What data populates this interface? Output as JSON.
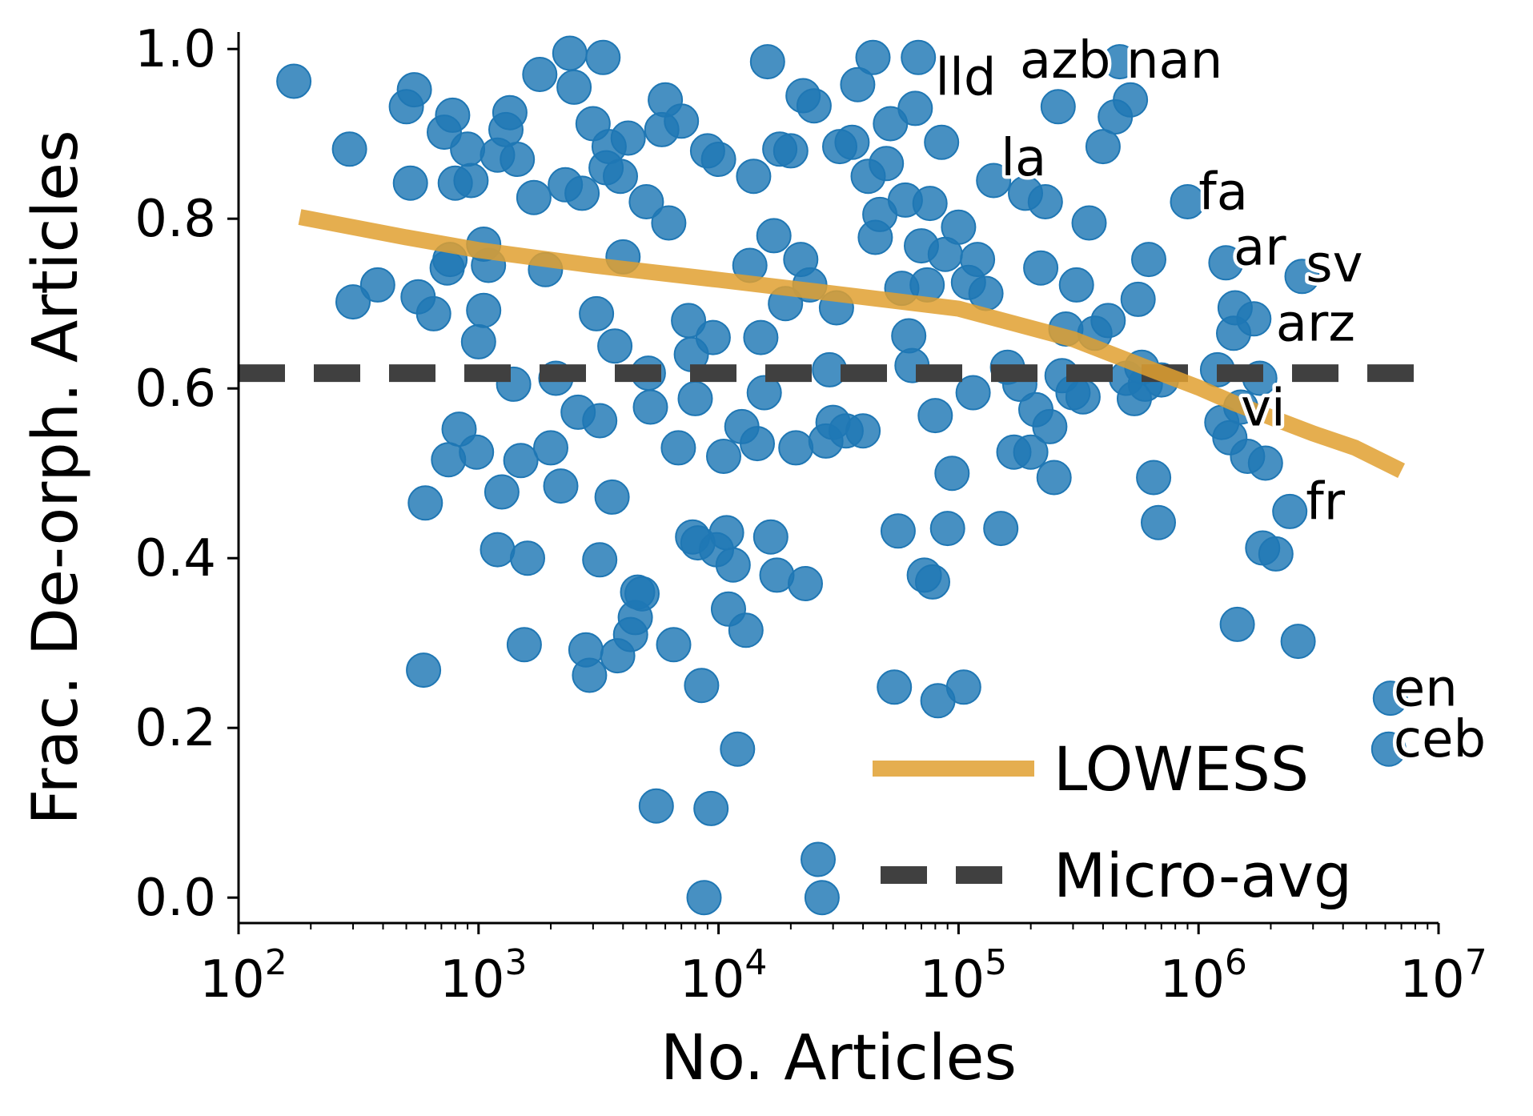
{
  "chart_data": {
    "type": "scatter",
    "xlabel": "No. Articles",
    "ylabel": "Frac. De-orph. Articles",
    "x_scale": "log",
    "xlim": [
      100,
      10000000
    ],
    "ylim": [
      -0.03,
      1.02
    ],
    "x_ticks": [
      {
        "value": 100,
        "base": "10",
        "exp": "2"
      },
      {
        "value": 1000,
        "base": "10",
        "exp": "3"
      },
      {
        "value": 10000,
        "base": "10",
        "exp": "4"
      },
      {
        "value": 100000,
        "base": "10",
        "exp": "5"
      },
      {
        "value": 1000000,
        "base": "10",
        "exp": "6"
      },
      {
        "value": 10000000,
        "base": "10",
        "exp": "7"
      }
    ],
    "y_ticks": [
      {
        "value": 0.0,
        "label": "0.0"
      },
      {
        "value": 0.2,
        "label": "0.2"
      },
      {
        "value": 0.4,
        "label": "0.4"
      },
      {
        "value": 0.6,
        "label": "0.6"
      },
      {
        "value": 0.8,
        "label": "0.8"
      },
      {
        "value": 1.0,
        "label": "1.0"
      }
    ],
    "grid": false,
    "legend_position": "bottom-right",
    "colors": {
      "points": "#1f77b4",
      "lowess": "#e0a030",
      "micro_avg": "#404040"
    },
    "micro_avg": {
      "name": "Micro-avg",
      "y": 0.618
    },
    "lowess": {
      "name": "LOWESS",
      "x": [
        180,
        500,
        1000,
        3000,
        10000,
        30000,
        100000,
        300000,
        600000,
        1000000,
        1400000,
        2000000,
        3000000,
        4500000,
        7000000
      ],
      "y": [
        0.802,
        0.778,
        0.763,
        0.745,
        0.728,
        0.712,
        0.694,
        0.658,
        0.625,
        0.601,
        0.583,
        0.566,
        0.547,
        0.53,
        0.503
      ]
    },
    "annotations": [
      {
        "text": "lld",
        "x": 80000,
        "y": 0.965
      },
      {
        "text": "azb",
        "x": 180000,
        "y": 0.985
      },
      {
        "text": "nan",
        "x": 500000,
        "y": 0.985
      },
      {
        "text": "la",
        "x": 150000,
        "y": 0.87
      },
      {
        "text": "fa",
        "x": 1000000,
        "y": 0.83
      },
      {
        "text": "ar",
        "x": 1400000,
        "y": 0.765
      },
      {
        "text": "sv",
        "x": 2800000,
        "y": 0.745
      },
      {
        "text": "arz",
        "x": 2100000,
        "y": 0.675
      },
      {
        "text": "vi",
        "x": 1500000,
        "y": 0.575
      },
      {
        "text": "fr",
        "x": 2800000,
        "y": 0.465
      },
      {
        "text": "en",
        "x": 6500000,
        "y": 0.245
      },
      {
        "text": "ceb",
        "x": 6500000,
        "y": 0.185
      }
    ],
    "points": [
      [
        170,
        0.962
      ],
      [
        290,
        0.882
      ],
      [
        300,
        0.702
      ],
      [
        380,
        0.722
      ],
      [
        500,
        0.932
      ],
      [
        540,
        0.952
      ],
      [
        520,
        0.842
      ],
      [
        560,
        0.708
      ],
      [
        600,
        0.465
      ],
      [
        590,
        0.268
      ],
      [
        650,
        0.688
      ],
      [
        720,
        0.902
      ],
      [
        740,
        0.742
      ],
      [
        760,
        0.752
      ],
      [
        780,
        0.922
      ],
      [
        830,
        0.552
      ],
      [
        750,
        0.516
      ],
      [
        800,
        0.842
      ],
      [
        900,
        0.882
      ],
      [
        930,
        0.845
      ],
      [
        980,
        0.525
      ],
      [
        1000,
        0.655
      ],
      [
        1050,
        0.77
      ],
      [
        1100,
        0.745
      ],
      [
        1050,
        0.692
      ],
      [
        1200,
        0.875
      ],
      [
        1200,
        0.41
      ],
      [
        1250,
        0.478
      ],
      [
        1300,
        0.905
      ],
      [
        1350,
        0.925
      ],
      [
        1400,
        0.605
      ],
      [
        1450,
        0.87
      ],
      [
        1500,
        0.515
      ],
      [
        1550,
        0.298
      ],
      [
        1600,
        0.4
      ],
      [
        1700,
        0.825
      ],
      [
        1800,
        0.97
      ],
      [
        1900,
        0.74
      ],
      [
        2000,
        0.53
      ],
      [
        2100,
        0.612
      ],
      [
        2200,
        0.485
      ],
      [
        2300,
        0.84
      ],
      [
        2400,
        0.995
      ],
      [
        2500,
        0.955
      ],
      [
        2600,
        0.572
      ],
      [
        2700,
        0.83
      ],
      [
        2800,
        0.292
      ],
      [
        2900,
        0.262
      ],
      [
        3000,
        0.912
      ],
      [
        3100,
        0.688
      ],
      [
        3200,
        0.562
      ],
      [
        3200,
        0.398
      ],
      [
        3300,
        0.99
      ],
      [
        3400,
        0.86
      ],
      [
        3500,
        0.885
      ],
      [
        3600,
        0.472
      ],
      [
        3700,
        0.65
      ],
      [
        3800,
        0.285
      ],
      [
        3900,
        0.85
      ],
      [
        4000,
        0.755
      ],
      [
        4200,
        0.895
      ],
      [
        4300,
        0.31
      ],
      [
        4500,
        0.33
      ],
      [
        4600,
        0.36
      ],
      [
        4800,
        0.358
      ],
      [
        5000,
        0.82
      ],
      [
        5100,
        0.618
      ],
      [
        5200,
        0.578
      ],
      [
        5500,
        0.108
      ],
      [
        5800,
        0.905
      ],
      [
        6000,
        0.94
      ],
      [
        6200,
        0.795
      ],
      [
        6500,
        0.298
      ],
      [
        6800,
        0.53
      ],
      [
        7000,
        0.915
      ],
      [
        7500,
        0.68
      ],
      [
        7700,
        0.64
      ],
      [
        7800,
        0.425
      ],
      [
        8000,
        0.588
      ],
      [
        8200,
        0.418
      ],
      [
        8500,
        0.25
      ],
      [
        8700,
        0.0
      ],
      [
        9000,
        0.88
      ],
      [
        9300,
        0.105
      ],
      [
        9500,
        0.66
      ],
      [
        9800,
        0.41
      ],
      [
        10000,
        0.87
      ],
      [
        10500,
        0.52
      ],
      [
        10800,
        0.43
      ],
      [
        11000,
        0.34
      ],
      [
        11500,
        0.392
      ],
      [
        12000,
        0.175
      ],
      [
        12500,
        0.555
      ],
      [
        13000,
        0.315
      ],
      [
        13500,
        0.745
      ],
      [
        14000,
        0.85
      ],
      [
        14500,
        0.535
      ],
      [
        15000,
        0.66
      ],
      [
        15500,
        0.595
      ],
      [
        16000,
        0.985
      ],
      [
        16500,
        0.425
      ],
      [
        17000,
        0.78
      ],
      [
        17500,
        0.38
      ],
      [
        18000,
        0.882
      ],
      [
        19000,
        0.7
      ],
      [
        20000,
        0.88
      ],
      [
        21000,
        0.53
      ],
      [
        22000,
        0.752
      ],
      [
        22500,
        0.945
      ],
      [
        23000,
        0.37
      ],
      [
        24000,
        0.722
      ],
      [
        25000,
        0.933
      ],
      [
        26000,
        0.045
      ],
      [
        27000,
        0.0
      ],
      [
        28000,
        0.538
      ],
      [
        29000,
        0.622
      ],
      [
        30000,
        0.56
      ],
      [
        31000,
        0.695
      ],
      [
        32000,
        0.885
      ],
      [
        34000,
        0.55
      ],
      [
        36000,
        0.89
      ],
      [
        38000,
        0.958
      ],
      [
        40000,
        0.55
      ],
      [
        42000,
        0.85
      ],
      [
        44000,
        0.99
      ],
      [
        45000,
        0.778
      ],
      [
        47000,
        0.805
      ],
      [
        50000,
        0.865
      ],
      [
        52000,
        0.912
      ],
      [
        54000,
        0.248
      ],
      [
        56000,
        0.432
      ],
      [
        58000,
        0.718
      ],
      [
        60000,
        0.822
      ],
      [
        62000,
        0.662
      ],
      [
        64000,
        0.627
      ],
      [
        66000,
        0.93
      ],
      [
        68000,
        0.99
      ],
      [
        70000,
        0.768
      ],
      [
        72000,
        0.38
      ],
      [
        74000,
        0.722
      ],
      [
        76000,
        0.818
      ],
      [
        78000,
        0.372
      ],
      [
        80000,
        0.568
      ],
      [
        82000,
        0.232
      ],
      [
        85000,
        0.89
      ],
      [
        88000,
        0.758
      ],
      [
        90000,
        0.435
      ],
      [
        94000,
        0.5
      ],
      [
        100000,
        0.79
      ],
      [
        105000,
        0.248
      ],
      [
        110000,
        0.725
      ],
      [
        115000,
        0.595
      ],
      [
        120000,
        0.752
      ],
      [
        130000,
        0.712
      ],
      [
        140000,
        0.845
      ],
      [
        150000,
        0.435
      ],
      [
        160000,
        0.625
      ],
      [
        170000,
        0.525
      ],
      [
        180000,
        0.605
      ],
      [
        190000,
        0.83
      ],
      [
        200000,
        0.525
      ],
      [
        210000,
        0.575
      ],
      [
        220000,
        0.742
      ],
      [
        230000,
        0.82
      ],
      [
        240000,
        0.555
      ],
      [
        250000,
        0.495
      ],
      [
        260000,
        0.932
      ],
      [
        270000,
        0.615
      ],
      [
        280000,
        0.67
      ],
      [
        300000,
        0.595
      ],
      [
        310000,
        0.722
      ],
      [
        330000,
        0.59
      ],
      [
        350000,
        0.795
      ],
      [
        370000,
        0.665
      ],
      [
        400000,
        0.885
      ],
      [
        420000,
        0.68
      ],
      [
        450000,
        0.92
      ],
      [
        470000,
        0.985
      ],
      [
        500000,
        0.612
      ],
      [
        520000,
        0.94
      ],
      [
        540000,
        0.588
      ],
      [
        560000,
        0.705
      ],
      [
        580000,
        0.625
      ],
      [
        600000,
        0.605
      ],
      [
        620000,
        0.752
      ],
      [
        650000,
        0.495
      ],
      [
        680000,
        0.442
      ],
      [
        700000,
        0.61
      ],
      [
        900000,
        0.82
      ],
      [
        1200000,
        0.622
      ],
      [
        1250000,
        0.56
      ],
      [
        1300000,
        0.748
      ],
      [
        1350000,
        0.542
      ],
      [
        1400000,
        0.665
      ],
      [
        1420000,
        0.695
      ],
      [
        1450000,
        0.322
      ],
      [
        1500000,
        0.578
      ],
      [
        1600000,
        0.52
      ],
      [
        1700000,
        0.682
      ],
      [
        1800000,
        0.612
      ],
      [
        1850000,
        0.412
      ],
      [
        1900000,
        0.512
      ],
      [
        2100000,
        0.405
      ],
      [
        2400000,
        0.455
      ],
      [
        2600000,
        0.302
      ],
      [
        2700000,
        0.732
      ],
      [
        6200000,
        0.175
      ],
      [
        6300000,
        0.235
      ]
    ]
  }
}
